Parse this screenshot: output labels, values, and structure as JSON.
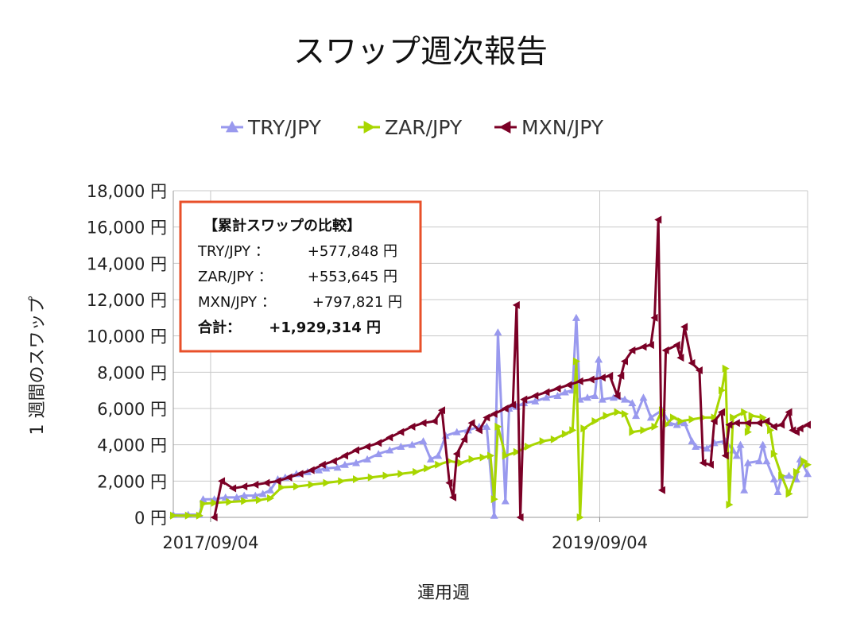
{
  "chart_data": {
    "type": "line",
    "title": "スワップ週次報告",
    "xlabel": "運用週",
    "ylabel": "1 週間のスワップ",
    "ylim": [
      0,
      18000
    ],
    "yticks": [
      0,
      2000,
      4000,
      6000,
      8000,
      10000,
      12000,
      14000,
      16000,
      18000
    ],
    "ytick_labels": [
      "0 円",
      "2,000 円",
      "4,000 円",
      "6,000 円",
      "8,000 円",
      "10,000 円",
      "12,000 円",
      "14,000 円",
      "16,000 円",
      "18,000 円"
    ],
    "xlim": [
      "2017-06-26",
      "2020-09-28"
    ],
    "xticks": [
      "2017-09-04",
      "2019-09-04"
    ],
    "xtick_labels": [
      "2017/09/04",
      "2019/09/04"
    ],
    "grid": true,
    "legend_position": "top",
    "series": [
      {
        "name": "TRY/JPY",
        "color": "#9999ee",
        "marker": "triangle-up",
        "points": [
          [
            "2017-06-26",
            150
          ],
          [
            "2017-07-24",
            150
          ],
          [
            "2017-08-14",
            150
          ],
          [
            "2017-08-21",
            1000
          ],
          [
            "2017-09-11",
            1000
          ],
          [
            "2017-10-02",
            1100
          ],
          [
            "2017-10-23",
            1100
          ],
          [
            "2017-11-06",
            1200
          ],
          [
            "2017-11-27",
            1200
          ],
          [
            "2017-12-11",
            1300
          ],
          [
            "2017-12-25",
            1500
          ],
          [
            "2018-01-08",
            2100
          ],
          [
            "2018-01-22",
            2200
          ],
          [
            "2018-02-12",
            2400
          ],
          [
            "2018-03-05",
            2500
          ],
          [
            "2018-03-26",
            2600
          ],
          [
            "2018-04-09",
            2700
          ],
          [
            "2018-04-30",
            2750
          ],
          [
            "2018-05-14",
            2900
          ],
          [
            "2018-06-04",
            3000
          ],
          [
            "2018-06-25",
            3200
          ],
          [
            "2018-07-16",
            3500
          ],
          [
            "2018-08-06",
            3700
          ],
          [
            "2018-08-27",
            3900
          ],
          [
            "2018-09-17",
            4000
          ],
          [
            "2018-10-08",
            4200
          ],
          [
            "2018-10-22",
            3200
          ],
          [
            "2018-11-05",
            3400
          ],
          [
            "2018-11-19",
            4500
          ],
          [
            "2018-12-10",
            4700
          ],
          [
            "2018-12-31",
            4800
          ],
          [
            "2019-01-21",
            5000
          ],
          [
            "2019-02-04",
            5000
          ],
          [
            "2019-02-18",
            100
          ],
          [
            "2019-02-25",
            10200
          ],
          [
            "2019-03-11",
            900
          ],
          [
            "2019-03-18",
            6000
          ],
          [
            "2019-04-01",
            6100
          ],
          [
            "2019-04-15",
            6300
          ],
          [
            "2019-05-06",
            6400
          ],
          [
            "2019-05-27",
            6600
          ],
          [
            "2019-06-17",
            6700
          ],
          [
            "2019-07-01",
            6900
          ],
          [
            "2019-07-15",
            7000
          ],
          [
            "2019-07-22",
            11000
          ],
          [
            "2019-07-29",
            6500
          ],
          [
            "2019-08-12",
            6600
          ],
          [
            "2019-08-26",
            6700
          ],
          [
            "2019-09-02",
            8700
          ],
          [
            "2019-09-09",
            6500
          ],
          [
            "2019-09-30",
            6600
          ],
          [
            "2019-10-21",
            6500
          ],
          [
            "2019-11-04",
            6300
          ],
          [
            "2019-11-11",
            5600
          ],
          [
            "2019-11-25",
            6600
          ],
          [
            "2019-12-09",
            5500
          ],
          [
            "2019-12-30",
            5900
          ],
          [
            "2020-01-13",
            5200
          ],
          [
            "2020-01-27",
            5100
          ],
          [
            "2020-02-10",
            5200
          ],
          [
            "2020-02-24",
            4200
          ],
          [
            "2020-03-02",
            3900
          ],
          [
            "2020-03-23",
            3800
          ],
          [
            "2020-04-06",
            4100
          ],
          [
            "2020-04-27",
            4200
          ],
          [
            "2020-05-11",
            3700
          ],
          [
            "2020-05-18",
            3400
          ],
          [
            "2020-05-25",
            4000
          ],
          [
            "2020-06-01",
            1500
          ],
          [
            "2020-06-08",
            3000
          ],
          [
            "2020-06-29",
            3100
          ],
          [
            "2020-07-06",
            4000
          ],
          [
            "2020-07-13",
            3100
          ],
          [
            "2020-07-27",
            2100
          ],
          [
            "2020-08-03",
            1400
          ],
          [
            "2020-08-10",
            2200
          ],
          [
            "2020-08-24",
            2300
          ],
          [
            "2020-09-07",
            2100
          ],
          [
            "2020-09-14",
            3200
          ],
          [
            "2020-09-28",
            2400
          ]
        ]
      },
      {
        "name": "ZAR/JPY",
        "color": "#a8d600",
        "marker": "triangle-right",
        "points": [
          [
            "2017-06-26",
            100
          ],
          [
            "2017-07-24",
            100
          ],
          [
            "2017-08-14",
            100
          ],
          [
            "2017-08-21",
            750
          ],
          [
            "2017-09-11",
            800
          ],
          [
            "2017-10-09",
            850
          ],
          [
            "2017-11-06",
            900
          ],
          [
            "2017-12-04",
            950
          ],
          [
            "2017-12-25",
            1050
          ],
          [
            "2018-01-15",
            1650
          ],
          [
            "2018-02-12",
            1700
          ],
          [
            "2018-03-12",
            1800
          ],
          [
            "2018-04-09",
            1900
          ],
          [
            "2018-05-07",
            2000
          ],
          [
            "2018-06-04",
            2100
          ],
          [
            "2018-07-02",
            2200
          ],
          [
            "2018-07-30",
            2300
          ],
          [
            "2018-08-27",
            2400
          ],
          [
            "2018-09-24",
            2500
          ],
          [
            "2018-10-15",
            2700
          ],
          [
            "2018-11-05",
            2900
          ],
          [
            "2018-11-26",
            3100
          ],
          [
            "2018-12-17",
            3000
          ],
          [
            "2019-01-07",
            3200
          ],
          [
            "2019-01-28",
            3300
          ],
          [
            "2019-02-11",
            3400
          ],
          [
            "2019-02-18",
            1000
          ],
          [
            "2019-02-25",
            5000
          ],
          [
            "2019-03-11",
            3400
          ],
          [
            "2019-04-01",
            3600
          ],
          [
            "2019-04-22",
            3900
          ],
          [
            "2019-05-20",
            4200
          ],
          [
            "2019-06-10",
            4300
          ],
          [
            "2019-07-01",
            4600
          ],
          [
            "2019-07-15",
            4800
          ],
          [
            "2019-07-22",
            8600
          ],
          [
            "2019-07-29",
            0
          ],
          [
            "2019-08-05",
            4900
          ],
          [
            "2019-08-26",
            5300
          ],
          [
            "2019-09-16",
            5600
          ],
          [
            "2019-10-07",
            5800
          ],
          [
            "2019-10-21",
            5700
          ],
          [
            "2019-11-04",
            4700
          ],
          [
            "2019-11-25",
            4800
          ],
          [
            "2019-12-16",
            5000
          ],
          [
            "2019-12-30",
            5900
          ],
          [
            "2020-01-06",
            5100
          ],
          [
            "2020-01-20",
            5500
          ],
          [
            "2020-02-03",
            5300
          ],
          [
            "2020-02-24",
            5400
          ],
          [
            "2020-03-16",
            5500
          ],
          [
            "2020-04-06",
            5500
          ],
          [
            "2020-04-20",
            7000
          ],
          [
            "2020-04-27",
            8200
          ],
          [
            "2020-05-04",
            700
          ],
          [
            "2020-05-11",
            5500
          ],
          [
            "2020-06-01",
            5800
          ],
          [
            "2020-06-08",
            4700
          ],
          [
            "2020-06-15",
            5600
          ],
          [
            "2020-07-06",
            5500
          ],
          [
            "2020-07-20",
            4800
          ],
          [
            "2020-07-27",
            3500
          ],
          [
            "2020-08-10",
            2300
          ],
          [
            "2020-08-24",
            1300
          ],
          [
            "2020-09-07",
            2500
          ],
          [
            "2020-09-21",
            3100
          ],
          [
            "2020-09-28",
            2900
          ]
        ]
      },
      {
        "name": "MXN/JPY",
        "color": "#7b0026",
        "marker": "triangle-left",
        "points": [
          [
            "2017-09-11",
            0
          ],
          [
            "2017-09-25",
            2000
          ],
          [
            "2017-10-16",
            1600
          ],
          [
            "2017-11-06",
            1700
          ],
          [
            "2017-11-27",
            1800
          ],
          [
            "2017-12-18",
            1900
          ],
          [
            "2018-01-08",
            2000
          ],
          [
            "2018-01-29",
            2200
          ],
          [
            "2018-02-19",
            2400
          ],
          [
            "2018-03-12",
            2600
          ],
          [
            "2018-04-02",
            2900
          ],
          [
            "2018-04-23",
            3100
          ],
          [
            "2018-05-14",
            3400
          ],
          [
            "2018-06-04",
            3700
          ],
          [
            "2018-06-25",
            3900
          ],
          [
            "2018-07-16",
            4100
          ],
          [
            "2018-08-06",
            4400
          ],
          [
            "2018-08-27",
            4700
          ],
          [
            "2018-09-17",
            5000
          ],
          [
            "2018-10-08",
            5200
          ],
          [
            "2018-10-29",
            5300
          ],
          [
            "2018-11-12",
            5900
          ],
          [
            "2018-11-26",
            1900
          ],
          [
            "2018-12-03",
            1100
          ],
          [
            "2018-12-10",
            3500
          ],
          [
            "2018-12-24",
            4300
          ],
          [
            "2019-01-07",
            5200
          ],
          [
            "2019-01-21",
            4800
          ],
          [
            "2019-02-04",
            5500
          ],
          [
            "2019-02-18",
            5700
          ],
          [
            "2019-03-11",
            6000
          ],
          [
            "2019-03-25",
            6200
          ],
          [
            "2019-04-01",
            11700
          ],
          [
            "2019-04-08",
            0
          ],
          [
            "2019-04-15",
            6500
          ],
          [
            "2019-05-06",
            6700
          ],
          [
            "2019-05-27",
            6900
          ],
          [
            "2019-06-17",
            7100
          ],
          [
            "2019-07-08",
            7300
          ],
          [
            "2019-07-29",
            7500
          ],
          [
            "2019-08-19",
            7600
          ],
          [
            "2019-09-09",
            7700
          ],
          [
            "2019-09-23",
            7800
          ],
          [
            "2019-10-07",
            6700
          ],
          [
            "2019-10-14",
            7800
          ],
          [
            "2019-10-21",
            8600
          ],
          [
            "2019-11-04",
            9200
          ],
          [
            "2019-11-25",
            9400
          ],
          [
            "2019-12-09",
            9500
          ],
          [
            "2019-12-16",
            11000
          ],
          [
            "2019-12-23",
            16400
          ],
          [
            "2019-12-30",
            1500
          ],
          [
            "2020-01-06",
            9200
          ],
          [
            "2020-01-27",
            9500
          ],
          [
            "2020-02-03",
            8800
          ],
          [
            "2020-02-10",
            10500
          ],
          [
            "2020-02-24",
            8500
          ],
          [
            "2020-03-09",
            8100
          ],
          [
            "2020-03-16",
            3000
          ],
          [
            "2020-03-30",
            2900
          ],
          [
            "2020-04-06",
            5300
          ],
          [
            "2020-04-20",
            5800
          ],
          [
            "2020-04-27",
            3400
          ],
          [
            "2020-05-04",
            5100
          ],
          [
            "2020-05-18",
            5200
          ],
          [
            "2020-06-08",
            5200
          ],
          [
            "2020-06-29",
            5200
          ],
          [
            "2020-07-13",
            5300
          ],
          [
            "2020-07-27",
            5000
          ],
          [
            "2020-08-10",
            5100
          ],
          [
            "2020-08-24",
            5800
          ],
          [
            "2020-08-31",
            4800
          ],
          [
            "2020-09-07",
            4700
          ],
          [
            "2020-09-14",
            4900
          ],
          [
            "2020-09-28",
            5100
          ]
        ]
      }
    ],
    "summary": {
      "heading": "【累計スワップの比較】",
      "rows": [
        {
          "label": "TRY/JPY ：",
          "value": "+577,848 円"
        },
        {
          "label": "ZAR/JPY ：",
          "value": "+553,645 円"
        },
        {
          "label": "MXN/JPY ：",
          "value": "+797,821 円"
        }
      ],
      "total_label": "合計：",
      "total_value": "+1,929,314 円",
      "border_color": "#e8502a"
    }
  }
}
